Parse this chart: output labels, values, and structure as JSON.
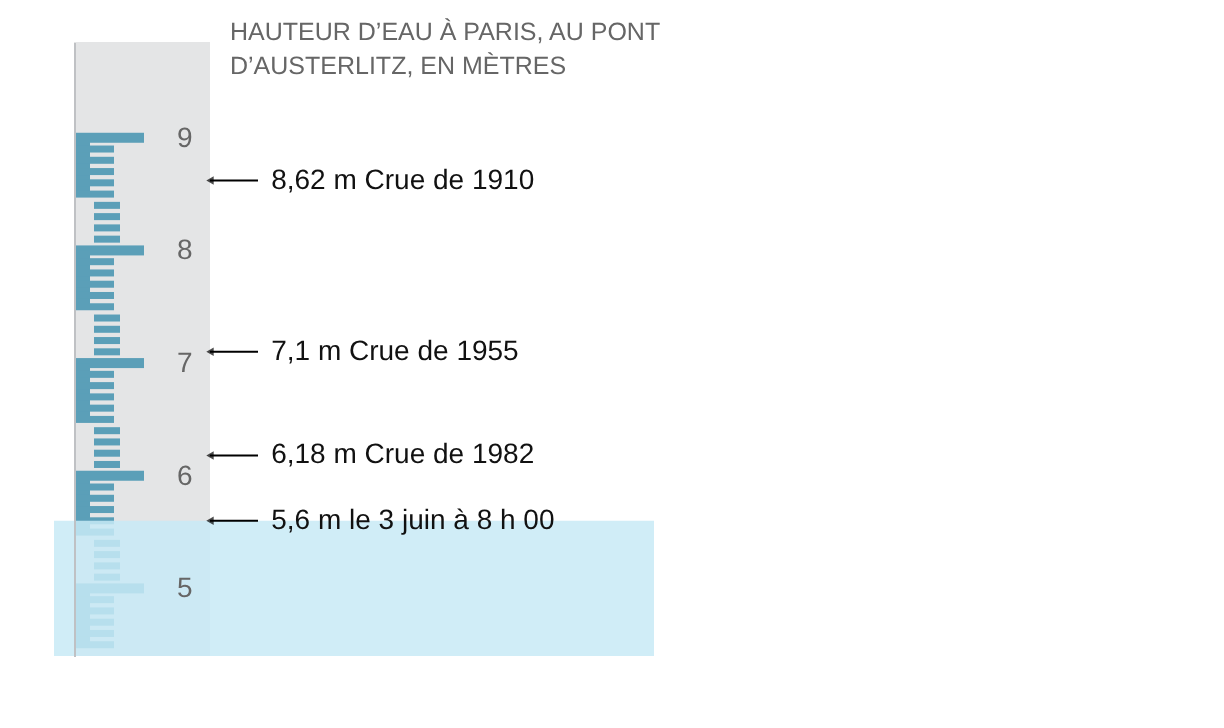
{
  "chart_data": {
    "type": "bar",
    "title": "HAUTEUR D’EAU À PARIS, AU PONT D’AUSTERLITZ, EN MÈTRES",
    "categories": [
      null
    ],
    "values": [
      5.6
    ],
    "color": "#c8eaf6",
    "ylim": [
      4.4,
      9.85
    ],
    "yticks": [
      5,
      6,
      7,
      8,
      9
    ],
    "grid": false,
    "ref_lines": [
      {
        "axis": "y",
        "value": 8.62,
        "label": "8,62 m Crue de 1910"
      },
      {
        "axis": "y",
        "value": 7.1,
        "label": "7,1 m Crue de 1955"
      },
      {
        "axis": "y",
        "value": 6.18,
        "label": "6,18 m Crue de 1982"
      }
    ],
    "annotations": [
      {
        "text": "5,6 m le 3 juin à 8 h 00",
        "y": 5.6
      }
    ]
  }
}
